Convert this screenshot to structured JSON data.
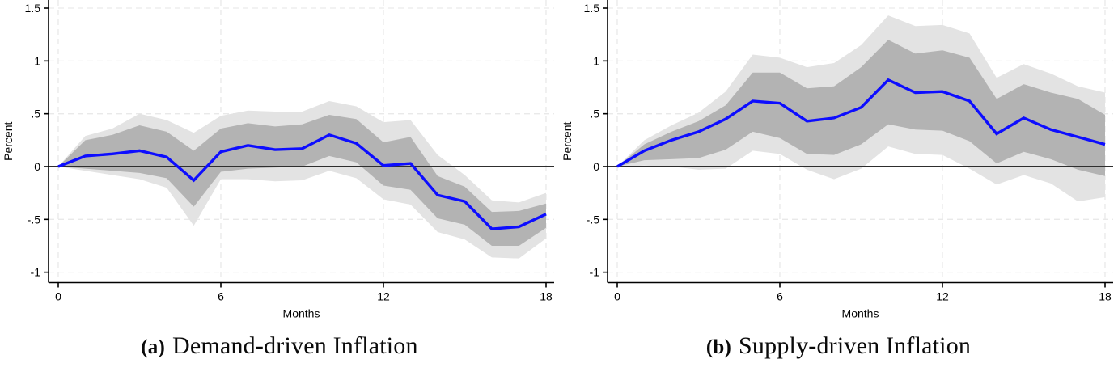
{
  "figure": {
    "background": "#ffffff",
    "panels": [
      {
        "caption_prefix": "(a)",
        "caption_title": "Demand-driven Inflation"
      },
      {
        "caption_prefix": "(b)",
        "caption_title": "Supply-driven Inflation"
      }
    ]
  },
  "chart_data": [
    {
      "type": "line",
      "title": "(a) Demand-driven Inflation",
      "xlabel": "Months",
      "ylabel": "Percent",
      "x": [
        0,
        1,
        2,
        3,
        4,
        5,
        6,
        7,
        8,
        9,
        10,
        11,
        12,
        13,
        14,
        15,
        16,
        17,
        18
      ],
      "xticks": [
        0,
        6,
        12,
        18
      ],
      "yticks": [
        -1,
        -0.5,
        0,
        0.5,
        1,
        1.5
      ],
      "ytick_labels": [
        "-1",
        "-.5",
        "0",
        ".5",
        "1",
        "1.5"
      ],
      "xlim": [
        -0.4,
        18.45
      ],
      "ylim": [
        -1.1,
        1.58
      ],
      "grid": true,
      "zero_line": true,
      "legend": "none",
      "line_color": "#0d0dff",
      "series": [
        {
          "name": "IRF point estimate",
          "values": [
            0,
            0.1,
            0.12,
            0.15,
            0.09,
            -0.13,
            0.14,
            0.2,
            0.16,
            0.17,
            0.3,
            0.22,
            0.01,
            0.03,
            -0.27,
            -0.33,
            -0.59,
            -0.57,
            -0.45
          ]
        }
      ],
      "bands": [
        {
          "name": "outer confidence band",
          "color": "#e3e3e3",
          "upper": [
            0,
            0.29,
            0.36,
            0.5,
            0.44,
            0.32,
            0.48,
            0.53,
            0.52,
            0.52,
            0.62,
            0.57,
            0.42,
            0.44,
            0.11,
            -0.08,
            -0.32,
            -0.34,
            -0.25
          ],
          "lower": [
            0,
            -0.04,
            -0.08,
            -0.12,
            -0.2,
            -0.56,
            -0.12,
            -0.12,
            -0.14,
            -0.13,
            -0.04,
            -0.11,
            -0.31,
            -0.36,
            -0.62,
            -0.69,
            -0.86,
            -0.87,
            -0.68
          ]
        },
        {
          "name": "inner confidence band",
          "color": "#b3b3b3",
          "upper": [
            0,
            0.25,
            0.3,
            0.39,
            0.33,
            0.15,
            0.36,
            0.41,
            0.38,
            0.4,
            0.49,
            0.45,
            0.23,
            0.28,
            -0.09,
            -0.19,
            -0.43,
            -0.42,
            -0.35
          ],
          "lower": [
            0,
            -0.02,
            -0.04,
            -0.06,
            -0.11,
            -0.38,
            -0.05,
            -0.02,
            -0.01,
            0.0,
            0.1,
            0.04,
            -0.18,
            -0.22,
            -0.49,
            -0.55,
            -0.75,
            -0.75,
            -0.58
          ]
        }
      ]
    },
    {
      "type": "line",
      "title": "(b) Supply-driven Inflation",
      "xlabel": "Months",
      "ylabel": "Percent",
      "x": [
        0,
        1,
        2,
        3,
        4,
        5,
        6,
        7,
        8,
        9,
        10,
        11,
        12,
        13,
        14,
        15,
        16,
        17,
        18
      ],
      "xticks": [
        0,
        6,
        12,
        18
      ],
      "yticks": [
        -1,
        -0.5,
        0,
        0.5,
        1,
        1.5
      ],
      "ytick_labels": [
        "-1",
        "-.5",
        "0",
        ".5",
        "1",
        "1.5"
      ],
      "xlim": [
        -0.4,
        18.45
      ],
      "ylim": [
        -1.1,
        1.58
      ],
      "grid": true,
      "zero_line": true,
      "legend": "none",
      "line_color": "#0d0dff",
      "series": [
        {
          "name": "IRF point estimate",
          "values": [
            0,
            0.15,
            0.25,
            0.33,
            0.45,
            0.62,
            0.6,
            0.43,
            0.46,
            0.56,
            0.82,
            0.7,
            0.71,
            0.62,
            0.31,
            0.46,
            0.35,
            0.28,
            0.21
          ]
        }
      ],
      "bands": [
        {
          "name": "outer confidence band",
          "color": "#e3e3e3",
          "upper": [
            0,
            0.25,
            0.39,
            0.51,
            0.71,
            1.06,
            1.03,
            0.94,
            0.98,
            1.15,
            1.43,
            1.33,
            1.34,
            1.26,
            0.84,
            0.97,
            0.88,
            0.76,
            0.7
          ],
          "lower": [
            0,
            0.01,
            0.0,
            -0.03,
            -0.02,
            0.15,
            0.12,
            -0.03,
            -0.12,
            -0.02,
            0.19,
            0.12,
            0.11,
            -0.02,
            -0.17,
            -0.08,
            -0.16,
            -0.33,
            -0.29
          ]
        },
        {
          "name": "inner confidence band",
          "color": "#b3b3b3",
          "upper": [
            0,
            0.21,
            0.33,
            0.43,
            0.58,
            0.89,
            0.89,
            0.74,
            0.76,
            0.94,
            1.2,
            1.07,
            1.1,
            1.03,
            0.64,
            0.78,
            0.7,
            0.64,
            0.49
          ],
          "lower": [
            0,
            0.06,
            0.07,
            0.08,
            0.16,
            0.33,
            0.27,
            0.12,
            0.11,
            0.21,
            0.4,
            0.35,
            0.34,
            0.24,
            0.03,
            0.14,
            0.07,
            -0.03,
            -0.09
          ]
        }
      ]
    }
  ]
}
